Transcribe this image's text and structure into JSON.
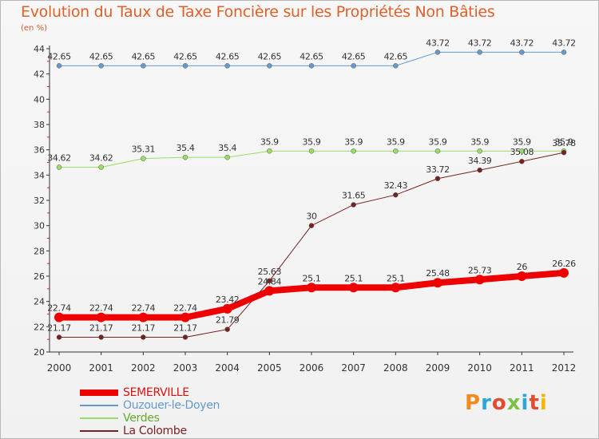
{
  "chart_data": {
    "type": "line",
    "title": "Evolution du Taux de Taxe Foncière sur les Propriétés Non Bâties",
    "unit": "(en %)",
    "x": [
      "2000",
      "2001",
      "2002",
      "2003",
      "2004",
      "2005",
      "2006",
      "2007",
      "2008",
      "2009",
      "2010",
      "2011",
      "2012"
    ],
    "ylim": [
      20,
      44
    ],
    "yticks": [
      20,
      22,
      24,
      26,
      28,
      30,
      32,
      34,
      36,
      38,
      40,
      42,
      44
    ],
    "grid": false,
    "legend_position": "bottom-left",
    "series": [
      {
        "name": "SEMERVILLE",
        "color": "#ee0000",
        "values": [
          22.74,
          22.74,
          22.74,
          22.74,
          23.42,
          24.84,
          25.1,
          25.1,
          25.1,
          25.48,
          25.73,
          26,
          26.26
        ],
        "labels": [
          "22.74",
          "22.74",
          "22.74",
          "22.74",
          "23.42",
          "24.84",
          "25.1",
          "25.1",
          "25.1",
          "25.48",
          "25.73",
          "26",
          "26.26"
        ]
      },
      {
        "name": "Ouzouer-le-Doyen",
        "color": "#6699cc",
        "values": [
          42.65,
          42.65,
          42.65,
          42.65,
          42.65,
          42.65,
          42.65,
          42.65,
          42.65,
          43.72,
          43.72,
          43.72,
          43.72
        ],
        "labels": [
          "42.65",
          "42.65",
          "42.65",
          "42.65",
          "42.65",
          "42.65",
          "42.65",
          "42.65",
          "42.65",
          "43.72",
          "43.72",
          "43.72",
          "43.72"
        ]
      },
      {
        "name": "Verdes",
        "color": "#99dd66",
        "values": [
          34.62,
          34.62,
          35.31,
          35.4,
          35.4,
          35.9,
          35.9,
          35.9,
          35.9,
          35.9,
          35.9,
          35.9,
          35.9
        ],
        "labels": [
          "34.62",
          "34.62",
          "35.31",
          "35.4",
          "35.4",
          "35.9",
          "35.9",
          "35.9",
          "35.9",
          "35.9",
          "35.9",
          "35.9",
          "35.9"
        ]
      },
      {
        "name": "La Colombe",
        "color": "#772222",
        "values": [
          21.17,
          21.17,
          21.17,
          21.17,
          21.79,
          25.63,
          30,
          31.65,
          32.43,
          33.72,
          34.39,
          35.08,
          35.78
        ],
        "labels": [
          "21.17",
          "21.17",
          "21.17",
          "21.17",
          "21.79",
          "25.63",
          "30",
          "31.65",
          "32.43",
          "33.72",
          "34.39",
          "35.08",
          "35.78"
        ]
      }
    ]
  },
  "logo": {
    "text": "Proxiti"
  }
}
